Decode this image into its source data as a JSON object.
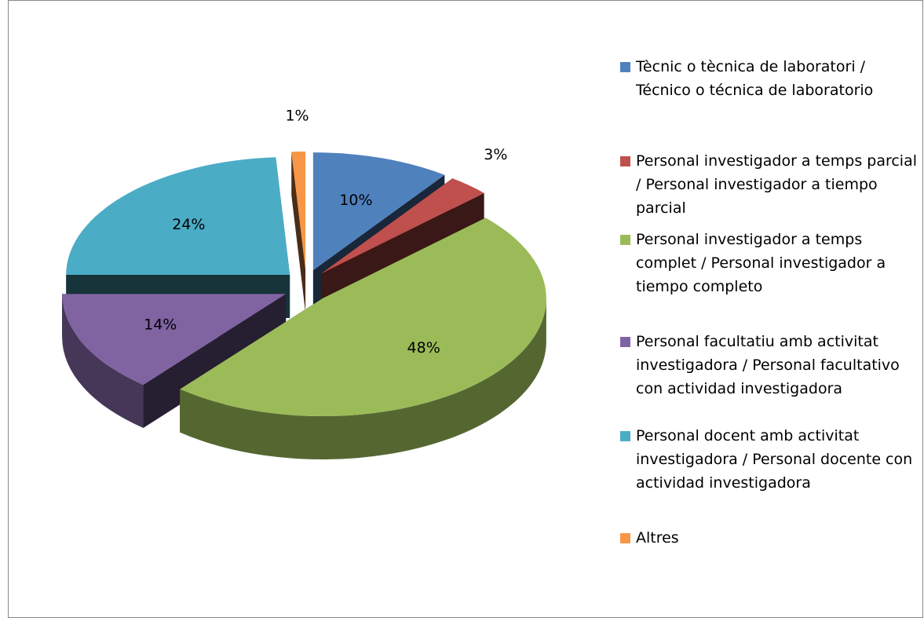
{
  "chart_data": {
    "type": "pie",
    "categories": [
      "Tècnic o tècnica de laboratori / Técnico o técnica de laboratorio",
      "Personal investigador a temps parcial / Personal investigador a tiempo parcial",
      "Personal investigador a temps complet / Personal investigador a tiempo completo",
      "Personal facultatiu amb activitat investigadora / Personal facultativo con actividad investigadora",
      "Personal docent amb activitat investigadora / Personal docente con actividad investigadora",
      "Altres"
    ],
    "values": [
      10,
      3,
      48,
      14,
      24,
      1
    ],
    "value_labels": [
      "10%",
      "3%",
      "48%",
      "14%",
      "24%",
      "1%"
    ],
    "colors": [
      "#4f81bd",
      "#c0504d",
      "#9bbb59",
      "#8064a2",
      "#4bacc6",
      "#f79646"
    ],
    "legend": "right"
  }
}
